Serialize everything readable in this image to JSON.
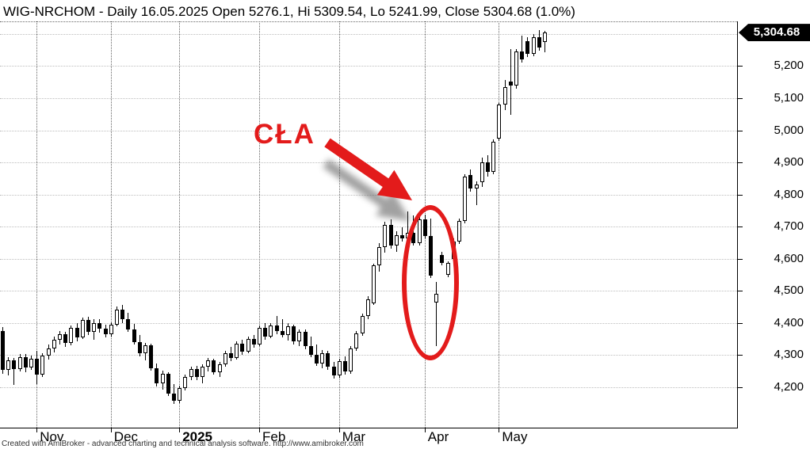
{
  "title_bar": {
    "text": "WIG-NRCHOM - Daily 16.05.2025 Open 5276.1, Hi 5309.54, Lo 5241.99, Close 5304.68 (1.0%)"
  },
  "price_badge": {
    "value": "5,304.68"
  },
  "annotation": {
    "label": "CŁA",
    "color": "#e31b1b",
    "meaning": "red arrow and ellipse highlighting the early-April sell-off"
  },
  "footer": {
    "text": "Created with AmiBroker - advanced charting and technical analysis software. http://www.amibroker.com"
  },
  "chart_data": {
    "type": "candlestick",
    "symbol": "WIG-NRCHOM",
    "interval": "Daily",
    "last_quote": {
      "date": "16.05.2025",
      "open": 5276.1,
      "high": 5309.54,
      "low": 5241.99,
      "close": 5304.68,
      "change": "1.0%"
    },
    "y_axis": {
      "position": "right",
      "labels": [
        "5,200",
        "5,100",
        "5,000",
        "4,900",
        "4,800",
        "4,700",
        "4,600",
        "4,500",
        "4,400",
        "4,300",
        "4,200"
      ],
      "values": [
        5200,
        5100,
        5000,
        4900,
        4800,
        4700,
        4600,
        4500,
        4400,
        4300,
        4200
      ],
      "gridline_values": [
        5300,
        5200,
        5100,
        5000,
        4900,
        4800,
        4700,
        4600,
        4500,
        4400,
        4300,
        4200
      ],
      "visible_range": [
        4073,
        5337
      ]
    },
    "x_axis": {
      "month_ticks": [
        {
          "label": "Nov",
          "bar_index": 6,
          "bold": false
        },
        {
          "label": "Dec",
          "bar_index": 19,
          "bold": false
        },
        {
          "label": "2025",
          "bar_index": 31,
          "bold": true
        },
        {
          "label": "Feb",
          "bar_index": 45,
          "bold": false
        },
        {
          "label": "Mar",
          "bar_index": 59,
          "bold": false
        },
        {
          "label": "Apr",
          "bar_index": 74,
          "bold": false
        },
        {
          "label": "May",
          "bar_index": 87,
          "bold": false
        }
      ]
    },
    "grid": "dotted",
    "ohlc_format": [
      "open",
      "high",
      "low",
      "close"
    ],
    "candles": [
      [
        4375,
        4386,
        4242,
        4252
      ],
      [
        4252,
        4292,
        4236,
        4282
      ],
      [
        4282,
        4290,
        4206,
        4256
      ],
      [
        4256,
        4302,
        4248,
        4292
      ],
      [
        4292,
        4302,
        4246,
        4260
      ],
      [
        4260,
        4298,
        4252,
        4288
      ],
      [
        4288,
        4312,
        4208,
        4238
      ],
      [
        4238,
        4306,
        4232,
        4298
      ],
      [
        4298,
        4332,
        4286,
        4320
      ],
      [
        4320,
        4358,
        4308,
        4348
      ],
      [
        4348,
        4375,
        4332,
        4365
      ],
      [
        4365,
        4372,
        4326,
        4336
      ],
      [
        4336,
        4392,
        4330,
        4385
      ],
      [
        4385,
        4400,
        4342,
        4354
      ],
      [
        4354,
        4415,
        4350,
        4408
      ],
      [
        4408,
        4418,
        4362,
        4372
      ],
      [
        4372,
        4410,
        4348,
        4400
      ],
      [
        4400,
        4412,
        4370,
        4382
      ],
      [
        4382,
        4394,
        4354,
        4364
      ],
      [
        4364,
        4402,
        4356,
        4395
      ],
      [
        4395,
        4450,
        4390,
        4442
      ],
      [
        4442,
        4455,
        4400,
        4410
      ],
      [
        4410,
        4430,
        4372,
        4380
      ],
      [
        4380,
        4396,
        4332,
        4340
      ],
      [
        4340,
        4362,
        4296,
        4304
      ],
      [
        4304,
        4338,
        4282,
        4330
      ],
      [
        4330,
        4334,
        4250,
        4258
      ],
      [
        4258,
        4272,
        4202,
        4212
      ],
      [
        4212,
        4250,
        4192,
        4242
      ],
      [
        4242,
        4246,
        4172,
        4180
      ],
      [
        4180,
        4208,
        4146,
        4156
      ],
      [
        4156,
        4205,
        4150,
        4196
      ],
      [
        4196,
        4238,
        4188,
        4230
      ],
      [
        4230,
        4262,
        4222,
        4255
      ],
      [
        4255,
        4265,
        4222,
        4230
      ],
      [
        4230,
        4270,
        4212,
        4262
      ],
      [
        4262,
        4290,
        4248,
        4282
      ],
      [
        4282,
        4288,
        4238,
        4246
      ],
      [
        4246,
        4278,
        4232,
        4270
      ],
      [
        4270,
        4312,
        4262,
        4305
      ],
      [
        4305,
        4325,
        4280,
        4290
      ],
      [
        4290,
        4342,
        4285,
        4335
      ],
      [
        4335,
        4348,
        4300,
        4310
      ],
      [
        4310,
        4356,
        4305,
        4350
      ],
      [
        4350,
        4362,
        4322,
        4332
      ],
      [
        4332,
        4392,
        4328,
        4385
      ],
      [
        4385,
        4398,
        4348,
        4358
      ],
      [
        4358,
        4400,
        4352,
        4392
      ],
      [
        4392,
        4420,
        4365,
        4374
      ],
      [
        4374,
        4410,
        4355,
        4362
      ],
      [
        4362,
        4398,
        4345,
        4390
      ],
      [
        4390,
        4395,
        4332,
        4342
      ],
      [
        4342,
        4380,
        4328,
        4372
      ],
      [
        4372,
        4378,
        4318,
        4328
      ],
      [
        4328,
        4358,
        4292,
        4300
      ],
      [
        4300,
        4332,
        4265,
        4274
      ],
      [
        4274,
        4315,
        4258,
        4305
      ],
      [
        4305,
        4312,
        4252,
        4262
      ],
      [
        4262,
        4278,
        4225,
        4235
      ],
      [
        4235,
        4288,
        4228,
        4280
      ],
      [
        4280,
        4295,
        4238,
        4248
      ],
      [
        4248,
        4328,
        4242,
        4320
      ],
      [
        4320,
        4375,
        4312,
        4368
      ],
      [
        4368,
        4428,
        4360,
        4420
      ],
      [
        4420,
        4482,
        4412,
        4472
      ],
      [
        4460,
        4585,
        4455,
        4578
      ],
      [
        4578,
        4648,
        4560,
        4635
      ],
      [
        4635,
        4716,
        4618,
        4705
      ],
      [
        4705,
        4722,
        4630,
        4640
      ],
      [
        4640,
        4685,
        4622,
        4672
      ],
      [
        4672,
        4698,
        4652,
        4662
      ],
      [
        4662,
        4748,
        4655,
        4680
      ],
      [
        4680,
        4735,
        4640,
        4648
      ],
      [
        4648,
        4730,
        4642,
        4722
      ],
      [
        4722,
        4736,
        4662,
        4670
      ],
      [
        4670,
        4724,
        4540,
        4548
      ],
      [
        4462,
        4528,
        4327,
        4490
      ],
      [
        4612,
        4620,
        4578,
        4586
      ],
      [
        4550,
        4592,
        4542,
        4586
      ],
      [
        4600,
        4662,
        4592,
        4654
      ],
      [
        4654,
        4724,
        4646,
        4718
      ],
      [
        4718,
        4862,
        4710,
        4855
      ],
      [
        4860,
        4878,
        4808,
        4818
      ],
      [
        4818,
        4840,
        4766,
        4830
      ],
      [
        4838,
        4914,
        4824,
        4900
      ],
      [
        4900,
        4922,
        4856,
        4870
      ],
      [
        4870,
        4972,
        4862,
        4964
      ],
      [
        4975,
        5086,
        4966,
        5080
      ],
      [
        5080,
        5158,
        5062,
        5135
      ],
      [
        5152,
        5254,
        5048,
        5140
      ],
      [
        5140,
        5254,
        5130,
        5246
      ],
      [
        5246,
        5296,
        5212,
        5222
      ],
      [
        5278,
        5290,
        5228,
        5238
      ],
      [
        5238,
        5300,
        5230,
        5290
      ],
      [
        5290,
        5312,
        5248,
        5258
      ],
      [
        5276.1,
        5309.54,
        5241.99,
        5304.68
      ]
    ]
  }
}
